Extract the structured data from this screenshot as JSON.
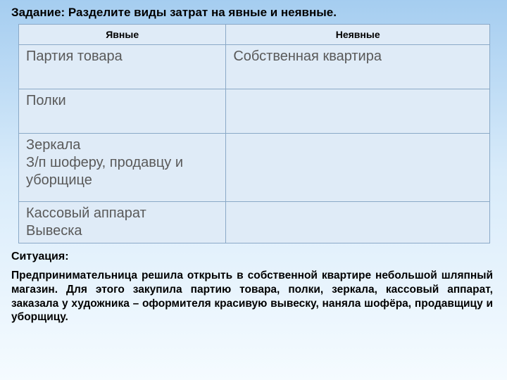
{
  "task_title": "Задание: Разделите виды затрат на явные и неявные.",
  "table": {
    "columns": [
      "Явные",
      "Неявные"
    ],
    "col_widths_pct": [
      44,
      56
    ],
    "header_bg": "#dfebf7",
    "cell_bg": "#dfebf7",
    "border_color": "#8aa9c7",
    "header_fontsize": 14,
    "cell_fontsize": 20,
    "cell_text_color": "#595959",
    "rows": [
      {
        "left": "Партия товара",
        "right": "Собственная квартира",
        "height": "tall"
      },
      {
        "left": "Полки",
        "right": "",
        "height": "tall"
      },
      {
        "left": "Зеркала\nЗ/п шоферу, продавцу и уборщице",
        "right": "",
        "height": "huge"
      },
      {
        "left": "Кассовый аппарат\nВывеска",
        "right": "",
        "height": "tall"
      }
    ]
  },
  "situation_label": "Ситуация:",
  "situation_body": "Предпринимательница решила открыть в собственной квартире небольшой шляпный магазин. Для этого закупила партию товара, полки, зеркала, кассовый аппарат, заказала у художника – оформителя красивую вывеску, наняла шофёра, продавщицу и уборщицу.",
  "background_gradient": [
    "#a5cdf0",
    "#d8ebfa",
    "#f5fbff"
  ],
  "title_fontsize": 17,
  "situation_label_fontsize": 16,
  "situation_body_fontsize": 15.5
}
